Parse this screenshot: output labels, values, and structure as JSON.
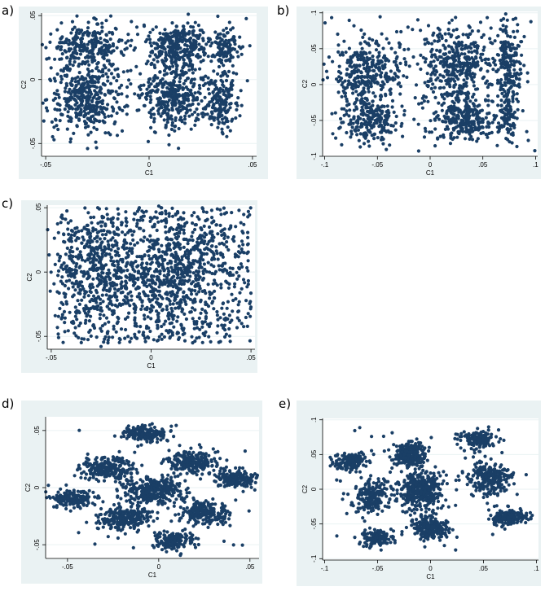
{
  "colors": {
    "panel_bg": "#eaf2f3",
    "plot_bg": "#ffffff",
    "marker": "#1a3f66",
    "axis": "#000000"
  },
  "chart_data": [
    {
      "id": "a",
      "panel_label": "a)",
      "type": "scatter",
      "xlabel": "C1",
      "ylabel": "C2",
      "xlim": [
        -0.052,
        0.052
      ],
      "ylim": [
        -0.06,
        0.052
      ],
      "xticks": [
        {
          "v": -0.05,
          "l": "-.05"
        },
        {
          "v": 0,
          "l": "0"
        },
        {
          "v": 0.05,
          "l": ".05"
        }
      ],
      "yticks": [
        {
          "v": -0.05,
          "l": "-.05"
        },
        {
          "v": 0,
          "l": "0"
        },
        {
          "v": 0.05,
          "l": ".05"
        }
      ],
      "clusters": [
        {
          "cx": -0.03,
          "cy": 0.025,
          "sx": 0.009,
          "sy": 0.009,
          "n": 260
        },
        {
          "cx": -0.03,
          "cy": -0.015,
          "sx": 0.009,
          "sy": 0.013,
          "n": 380
        },
        {
          "cx": 0.015,
          "cy": 0.027,
          "sx": 0.007,
          "sy": 0.009,
          "n": 300
        },
        {
          "cx": 0.012,
          "cy": -0.012,
          "sx": 0.008,
          "sy": 0.013,
          "n": 380
        },
        {
          "cx": 0.037,
          "cy": 0.025,
          "sx": 0.004,
          "sy": 0.007,
          "n": 110
        },
        {
          "cx": 0.035,
          "cy": -0.018,
          "sx": 0.004,
          "sy": 0.012,
          "n": 170
        }
      ],
      "uniform": {
        "xmin": -0.05,
        "xmax": 0.05,
        "ymin": -0.05,
        "ymax": 0.05,
        "n": 60
      }
    },
    {
      "id": "b",
      "panel_label": "b)",
      "type": "scatter",
      "xlabel": "C1",
      "ylabel": "C2",
      "xlim": [
        -0.102,
        0.102
      ],
      "ylim": [
        -0.1,
        0.102
      ],
      "xticks": [
        {
          "v": -0.1,
          "l": "-.1"
        },
        {
          "v": -0.05,
          "l": "-.05"
        },
        {
          "v": 0,
          "l": "0"
        },
        {
          "v": 0.05,
          "l": ".05"
        },
        {
          "v": 0.1,
          "l": ".1"
        }
      ],
      "yticks": [
        {
          "v": -0.1,
          "l": "-.1"
        },
        {
          "v": -0.05,
          "l": "-.05"
        },
        {
          "v": 0,
          "l": "0"
        },
        {
          "v": 0.05,
          "l": ".05"
        },
        {
          "v": 0.1,
          "l": ".1"
        }
      ],
      "clusters": [
        {
          "cx": -0.06,
          "cy": 0.02,
          "sx": 0.016,
          "sy": 0.022,
          "n": 330
        },
        {
          "cx": -0.055,
          "cy": -0.05,
          "sx": 0.014,
          "sy": 0.016,
          "n": 220
        },
        {
          "cx": 0.025,
          "cy": 0.025,
          "sx": 0.017,
          "sy": 0.028,
          "n": 400
        },
        {
          "cx": 0.03,
          "cy": -0.05,
          "sx": 0.013,
          "sy": 0.016,
          "n": 250
        },
        {
          "cx": 0.075,
          "cy": 0.03,
          "sx": 0.006,
          "sy": 0.028,
          "n": 180
        },
        {
          "cx": 0.072,
          "cy": -0.045,
          "sx": 0.006,
          "sy": 0.016,
          "n": 100
        }
      ],
      "uniform": {
        "xmin": -0.1,
        "xmax": 0.1,
        "ymin": -0.095,
        "ymax": 0.095,
        "n": 60
      }
    },
    {
      "id": "c",
      "panel_label": "c)",
      "type": "scatter",
      "xlabel": "C1",
      "ylabel": "C2",
      "xlim": [
        -0.052,
        0.052
      ],
      "ylim": [
        -0.06,
        0.052
      ],
      "xticks": [
        {
          "v": -0.05,
          "l": "-.05"
        },
        {
          "v": 0,
          "l": "0"
        },
        {
          "v": 0.05,
          "l": ".05"
        }
      ],
      "yticks": [
        {
          "v": -0.05,
          "l": "-.05"
        },
        {
          "v": 0,
          "l": "0"
        },
        {
          "v": 0.05,
          "l": ".05"
        }
      ],
      "clusters": [
        {
          "cx": -0.025,
          "cy": 0.0,
          "sx": 0.012,
          "sy": 0.022,
          "n": 380
        },
        {
          "cx": 0.012,
          "cy": 0.0,
          "sx": 0.012,
          "sy": 0.022,
          "n": 420
        }
      ],
      "uniform": {
        "xmin": -0.047,
        "xmax": 0.05,
        "ymin": -0.055,
        "ymax": 0.05,
        "n": 850
      }
    },
    {
      "id": "d",
      "panel_label": "d)",
      "type": "scatter",
      "xlabel": "C1",
      "ylabel": "C2",
      "xlim": [
        -0.062,
        0.055
      ],
      "ylim": [
        -0.062,
        0.062
      ],
      "xticks": [
        {
          "v": -0.05,
          "l": "-.05"
        },
        {
          "v": 0,
          "l": "0"
        },
        {
          "v": 0.05,
          "l": ".05"
        }
      ],
      "yticks": [
        {
          "v": -0.05,
          "l": "-.05"
        },
        {
          "v": 0,
          "l": "0"
        },
        {
          "v": 0.05,
          "l": ".05"
        }
      ],
      "clusters": [
        {
          "cx": -0.008,
          "cy": 0.047,
          "sx": 0.006,
          "sy": 0.004,
          "n": 160
        },
        {
          "cx": -0.028,
          "cy": 0.017,
          "sx": 0.007,
          "sy": 0.005,
          "n": 230
        },
        {
          "cx": 0.018,
          "cy": 0.023,
          "sx": 0.007,
          "sy": 0.005,
          "n": 230
        },
        {
          "cx": 0.042,
          "cy": 0.008,
          "sx": 0.006,
          "sy": 0.004,
          "n": 170
        },
        {
          "cx": -0.002,
          "cy": -0.002,
          "sx": 0.008,
          "sy": 0.006,
          "n": 330
        },
        {
          "cx": -0.048,
          "cy": -0.01,
          "sx": 0.006,
          "sy": 0.004,
          "n": 160
        },
        {
          "cx": -0.018,
          "cy": -0.027,
          "sx": 0.007,
          "sy": 0.005,
          "n": 230
        },
        {
          "cx": 0.025,
          "cy": -0.022,
          "sx": 0.007,
          "sy": 0.005,
          "n": 220
        },
        {
          "cx": 0.008,
          "cy": -0.046,
          "sx": 0.006,
          "sy": 0.004,
          "n": 150
        }
      ],
      "uniform": {
        "xmin": -0.055,
        "xmax": 0.05,
        "ymin": -0.055,
        "ymax": 0.055,
        "n": 40
      }
    },
    {
      "id": "e",
      "panel_label": "e)",
      "type": "scatter",
      "xlabel": "C1",
      "ylabel": "C2",
      "xlim": [
        -0.102,
        0.102
      ],
      "ylim": [
        -0.102,
        0.102
      ],
      "xticks": [
        {
          "v": -0.1,
          "l": "-.1"
        },
        {
          "v": -0.05,
          "l": "-.05"
        },
        {
          "v": 0,
          "l": "0"
        },
        {
          "v": 0.05,
          "l": ".05"
        },
        {
          "v": 0.1,
          "l": ".1"
        }
      ],
      "yticks": [
        {
          "v": -0.1,
          "l": "-.1"
        },
        {
          "v": -0.05,
          "l": "-.05"
        },
        {
          "v": 0,
          "l": "0"
        },
        {
          "v": 0.05,
          "l": ".05"
        },
        {
          "v": 0.1,
          "l": ".1"
        }
      ],
      "clusters": [
        {
          "cx": -0.075,
          "cy": 0.04,
          "sx": 0.008,
          "sy": 0.007,
          "n": 150
        },
        {
          "cx": -0.055,
          "cy": -0.01,
          "sx": 0.008,
          "sy": 0.012,
          "n": 200
        },
        {
          "cx": -0.05,
          "cy": -0.07,
          "sx": 0.008,
          "sy": 0.006,
          "n": 130
        },
        {
          "cx": -0.02,
          "cy": 0.05,
          "sx": 0.008,
          "sy": 0.009,
          "n": 230
        },
        {
          "cx": -0.01,
          "cy": -0.003,
          "sx": 0.01,
          "sy": 0.013,
          "n": 380
        },
        {
          "cx": 0.0,
          "cy": -0.055,
          "sx": 0.009,
          "sy": 0.008,
          "n": 220
        },
        {
          "cx": 0.045,
          "cy": 0.072,
          "sx": 0.008,
          "sy": 0.006,
          "n": 140
        },
        {
          "cx": 0.055,
          "cy": 0.015,
          "sx": 0.01,
          "sy": 0.012,
          "n": 230
        },
        {
          "cx": 0.075,
          "cy": -0.04,
          "sx": 0.009,
          "sy": 0.006,
          "n": 170
        }
      ],
      "uniform": {
        "xmin": -0.095,
        "xmax": 0.095,
        "ymin": -0.09,
        "ymax": 0.09,
        "n": 50
      }
    }
  ]
}
